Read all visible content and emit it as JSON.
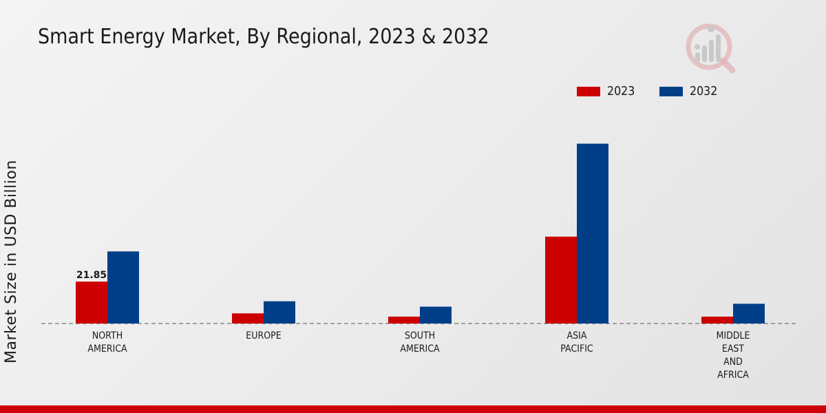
{
  "chart_data": {
    "type": "bar",
    "title": "Smart Energy Market, By Regional, 2023 & 2032",
    "xlabel": "",
    "ylabel": "Market Size in USD Billion",
    "categories": [
      [
        "NORTH",
        "AMERICA"
      ],
      [
        "EUROPE"
      ],
      [
        "SOUTH",
        "AMERICA"
      ],
      [
        "ASIA",
        "PACIFIC"
      ],
      [
        "MIDDLE",
        "EAST",
        "AND",
        "AFRICA"
      ]
    ],
    "series": [
      {
        "name": "2023",
        "color": "#cc0000",
        "values": [
          21.85,
          5.3,
          3.6,
          45.3,
          3.6
        ]
      },
      {
        "name": "2032",
        "color": "#003f87",
        "values": [
          37.6,
          11.6,
          8.8,
          93.8,
          10.3
        ]
      }
    ],
    "data_labels": [
      {
        "series": 0,
        "index": 0,
        "text": "21.85"
      }
    ],
    "ylim": [
      0,
      140
    ],
    "grid": false,
    "legend": "top-right",
    "baseline": "dashed"
  }
}
